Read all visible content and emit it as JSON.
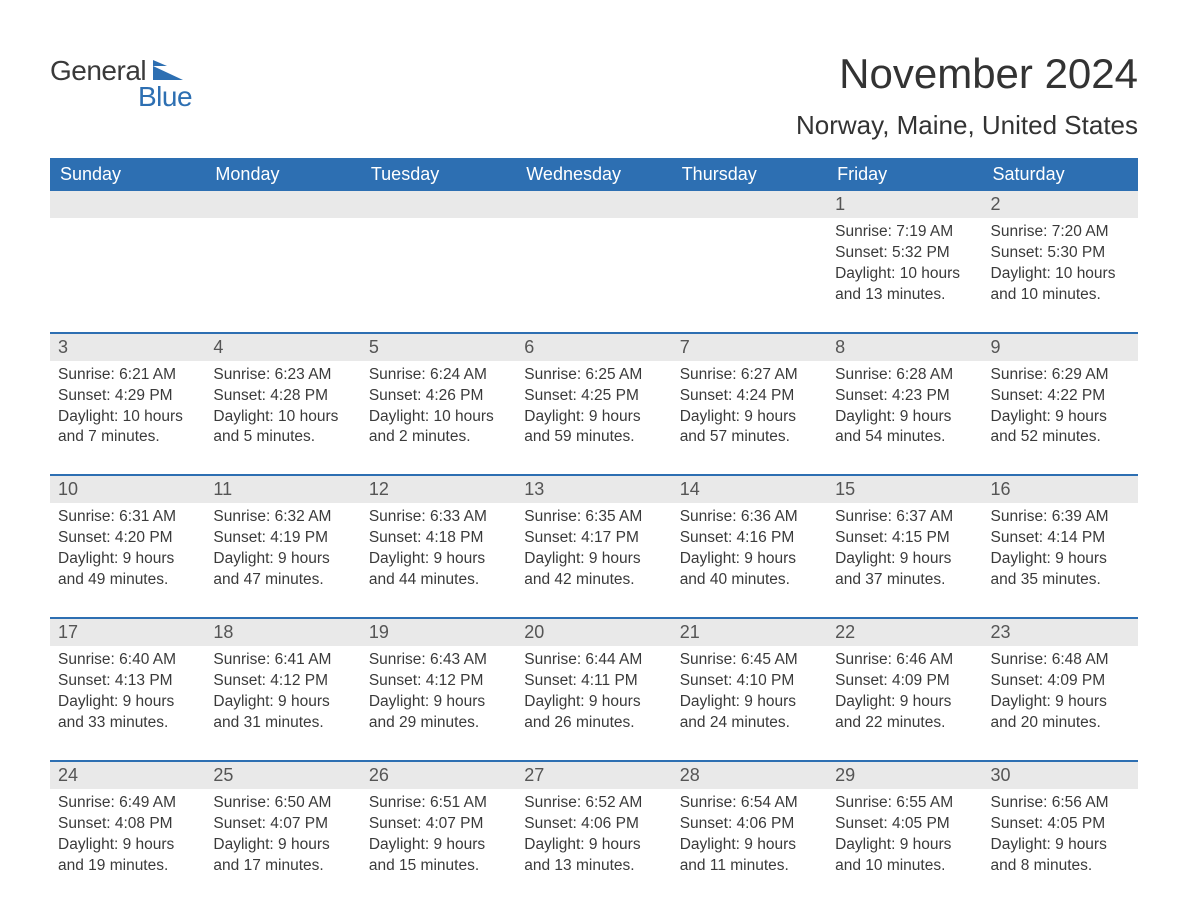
{
  "brand": {
    "text1": "General",
    "text2": "Blue"
  },
  "header": {
    "title": "November 2024",
    "location": "Norway, Maine, United States"
  },
  "colors": {
    "accent": "#2d6fb2",
    "header_row_bg": "#2d6fb2",
    "header_row_text": "#ffffff",
    "daynum_bg": "#e9e9e9",
    "body_text": "#3a3a3a",
    "page_bg": "#ffffff",
    "week_separator": "#2d6fb2"
  },
  "typography": {
    "title_fontsize": 42,
    "location_fontsize": 26,
    "dayheader_fontsize": 18,
    "daynum_fontsize": 18,
    "cell_fontsize": 15.5,
    "font_family": "Arial"
  },
  "columns": [
    "Sunday",
    "Monday",
    "Tuesday",
    "Wednesday",
    "Thursday",
    "Friday",
    "Saturday"
  ],
  "weeks": [
    [
      null,
      null,
      null,
      null,
      null,
      {
        "day": "1",
        "sunrise": "7:19 AM",
        "sunset": "5:32 PM",
        "daylight": "10 hours and 13 minutes."
      },
      {
        "day": "2",
        "sunrise": "7:20 AM",
        "sunset": "5:30 PM",
        "daylight": "10 hours and 10 minutes."
      }
    ],
    [
      {
        "day": "3",
        "sunrise": "6:21 AM",
        "sunset": "4:29 PM",
        "daylight": "10 hours and 7 minutes."
      },
      {
        "day": "4",
        "sunrise": "6:23 AM",
        "sunset": "4:28 PM",
        "daylight": "10 hours and 5 minutes."
      },
      {
        "day": "5",
        "sunrise": "6:24 AM",
        "sunset": "4:26 PM",
        "daylight": "10 hours and 2 minutes."
      },
      {
        "day": "6",
        "sunrise": "6:25 AM",
        "sunset": "4:25 PM",
        "daylight": "9 hours and 59 minutes."
      },
      {
        "day": "7",
        "sunrise": "6:27 AM",
        "sunset": "4:24 PM",
        "daylight": "9 hours and 57 minutes."
      },
      {
        "day": "8",
        "sunrise": "6:28 AM",
        "sunset": "4:23 PM",
        "daylight": "9 hours and 54 minutes."
      },
      {
        "day": "9",
        "sunrise": "6:29 AM",
        "sunset": "4:22 PM",
        "daylight": "9 hours and 52 minutes."
      }
    ],
    [
      {
        "day": "10",
        "sunrise": "6:31 AM",
        "sunset": "4:20 PM",
        "daylight": "9 hours and 49 minutes."
      },
      {
        "day": "11",
        "sunrise": "6:32 AM",
        "sunset": "4:19 PM",
        "daylight": "9 hours and 47 minutes."
      },
      {
        "day": "12",
        "sunrise": "6:33 AM",
        "sunset": "4:18 PM",
        "daylight": "9 hours and 44 minutes."
      },
      {
        "day": "13",
        "sunrise": "6:35 AM",
        "sunset": "4:17 PM",
        "daylight": "9 hours and 42 minutes."
      },
      {
        "day": "14",
        "sunrise": "6:36 AM",
        "sunset": "4:16 PM",
        "daylight": "9 hours and 40 minutes."
      },
      {
        "day": "15",
        "sunrise": "6:37 AM",
        "sunset": "4:15 PM",
        "daylight": "9 hours and 37 minutes."
      },
      {
        "day": "16",
        "sunrise": "6:39 AM",
        "sunset": "4:14 PM",
        "daylight": "9 hours and 35 minutes."
      }
    ],
    [
      {
        "day": "17",
        "sunrise": "6:40 AM",
        "sunset": "4:13 PM",
        "daylight": "9 hours and 33 minutes."
      },
      {
        "day": "18",
        "sunrise": "6:41 AM",
        "sunset": "4:12 PM",
        "daylight": "9 hours and 31 minutes."
      },
      {
        "day": "19",
        "sunrise": "6:43 AM",
        "sunset": "4:12 PM",
        "daylight": "9 hours and 29 minutes."
      },
      {
        "day": "20",
        "sunrise": "6:44 AM",
        "sunset": "4:11 PM",
        "daylight": "9 hours and 26 minutes."
      },
      {
        "day": "21",
        "sunrise": "6:45 AM",
        "sunset": "4:10 PM",
        "daylight": "9 hours and 24 minutes."
      },
      {
        "day": "22",
        "sunrise": "6:46 AM",
        "sunset": "4:09 PM",
        "daylight": "9 hours and 22 minutes."
      },
      {
        "day": "23",
        "sunrise": "6:48 AM",
        "sunset": "4:09 PM",
        "daylight": "9 hours and 20 minutes."
      }
    ],
    [
      {
        "day": "24",
        "sunrise": "6:49 AM",
        "sunset": "4:08 PM",
        "daylight": "9 hours and 19 minutes."
      },
      {
        "day": "25",
        "sunrise": "6:50 AM",
        "sunset": "4:07 PM",
        "daylight": "9 hours and 17 minutes."
      },
      {
        "day": "26",
        "sunrise": "6:51 AM",
        "sunset": "4:07 PM",
        "daylight": "9 hours and 15 minutes."
      },
      {
        "day": "27",
        "sunrise": "6:52 AM",
        "sunset": "4:06 PM",
        "daylight": "9 hours and 13 minutes."
      },
      {
        "day": "28",
        "sunrise": "6:54 AM",
        "sunset": "4:06 PM",
        "daylight": "9 hours and 11 minutes."
      },
      {
        "day": "29",
        "sunrise": "6:55 AM",
        "sunset": "4:05 PM",
        "daylight": "9 hours and 10 minutes."
      },
      {
        "day": "30",
        "sunrise": "6:56 AM",
        "sunset": "4:05 PM",
        "daylight": "9 hours and 8 minutes."
      }
    ]
  ],
  "labels": {
    "sunrise_prefix": "Sunrise: ",
    "sunset_prefix": "Sunset: ",
    "daylight_prefix": "Daylight: "
  }
}
